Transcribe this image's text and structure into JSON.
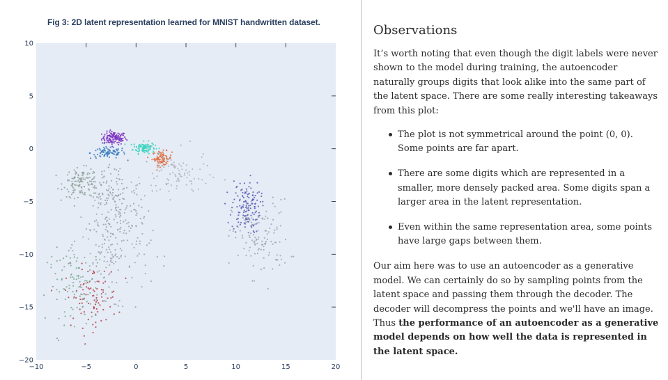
{
  "caption": "Fig 3: 2D latent representation learned for MNIST handwritten dataset.",
  "chart_data": {
    "type": "scatter",
    "title": "",
    "xlabel": "",
    "ylabel": "",
    "xlim": [
      -10,
      20
    ],
    "ylim": [
      -20,
      10
    ],
    "x_ticks": [
      -10,
      -5,
      0,
      5,
      10,
      15,
      20
    ],
    "y_ticks": [
      -20,
      -15,
      -10,
      -5,
      0,
      5,
      10
    ],
    "x_tick_labels": [
      "−10",
      "−5",
      "0",
      "5",
      "10",
      "15",
      "20"
    ],
    "y_tick_labels": [
      "−20",
      "−15",
      "−10",
      "−5",
      "0",
      "5",
      "10"
    ],
    "grid": false,
    "legend": "none",
    "background": "#e5ecf6",
    "clusters": [
      {
        "name": "",
        "color": "#7b2fbf",
        "center": [
          -2.2,
          1.0
        ],
        "spread": [
          1.1,
          0.55
        ],
        "count": 120
      },
      {
        "name": "",
        "color": "#3fd3c0",
        "center": [
          0.8,
          0.1
        ],
        "spread": [
          1.0,
          0.5
        ],
        "count": 110
      },
      {
        "name": "",
        "color": "#e06a3a",
        "center": [
          2.6,
          -0.9
        ],
        "spread": [
          0.9,
          0.6
        ],
        "count": 80
      },
      {
        "name": "",
        "color": "#3d7fbf",
        "center": [
          -2.8,
          -0.4
        ],
        "spread": [
          1.6,
          0.5
        ],
        "count": 90
      },
      {
        "name": "",
        "color": "#8fa39b",
        "center": [
          -5.5,
          -3.2
        ],
        "spread": [
          1.6,
          1.2
        ],
        "count": 110
      },
      {
        "name": "",
        "color": "#9aa2a8",
        "center": [
          -2.5,
          -4.8
        ],
        "spread": [
          3.2,
          3.2
        ],
        "count": 170
      },
      {
        "name": "",
        "color": "#5a5fb5",
        "center": [
          11.0,
          -5.5
        ],
        "spread": [
          1.3,
          2.3
        ],
        "count": 140
      },
      {
        "name": "",
        "color": "#a0a6ad",
        "center": [
          12.5,
          -8.5
        ],
        "spread": [
          2.6,
          3.3
        ],
        "count": 120
      },
      {
        "name": "",
        "color": "#b6404a",
        "center": [
          -4.5,
          -14.0
        ],
        "spread": [
          2.4,
          2.6
        ],
        "count": 90
      },
      {
        "name": "",
        "color": "#7ea88f",
        "center": [
          -5.8,
          -13.0
        ],
        "spread": [
          2.8,
          3.2
        ],
        "count": 110
      },
      {
        "name": "",
        "color": "#a2a2ad",
        "center": [
          -2.0,
          -9.5
        ],
        "spread": [
          3.2,
          4.0
        ],
        "count": 150
      },
      {
        "name": "",
        "color": "#b0b0bc",
        "center": [
          4.0,
          -2.5
        ],
        "spread": [
          3.0,
          2.0
        ],
        "count": 90
      }
    ]
  },
  "article": {
    "heading": "Observations",
    "intro": "It’s worth noting that even though the digit labels were never shown to the model during training, the autoencoder naturally groups digits that look alike into the same part of the latent space. There are some really interesting takeaways from this plot:",
    "bullets": [
      "The plot is not symmetrical around the point (0, 0). Some points are far apart.",
      "There are some digits which are represented in a smaller, more densely packed area. Some digits span a larger area in the latent representation.",
      "Even within the same representation area, some points have large gaps between them."
    ],
    "outro_start": "Our aim here was to use an autoencoder as a generative model. We can certainly do so by sampling points from the latent space and passing them through the decoder. The decoder will decompress the points and we'll have an image. Thus ",
    "outro_bold": "the performance of an autoencoder as a generative model depends on how well the data is represented in the latent space."
  }
}
